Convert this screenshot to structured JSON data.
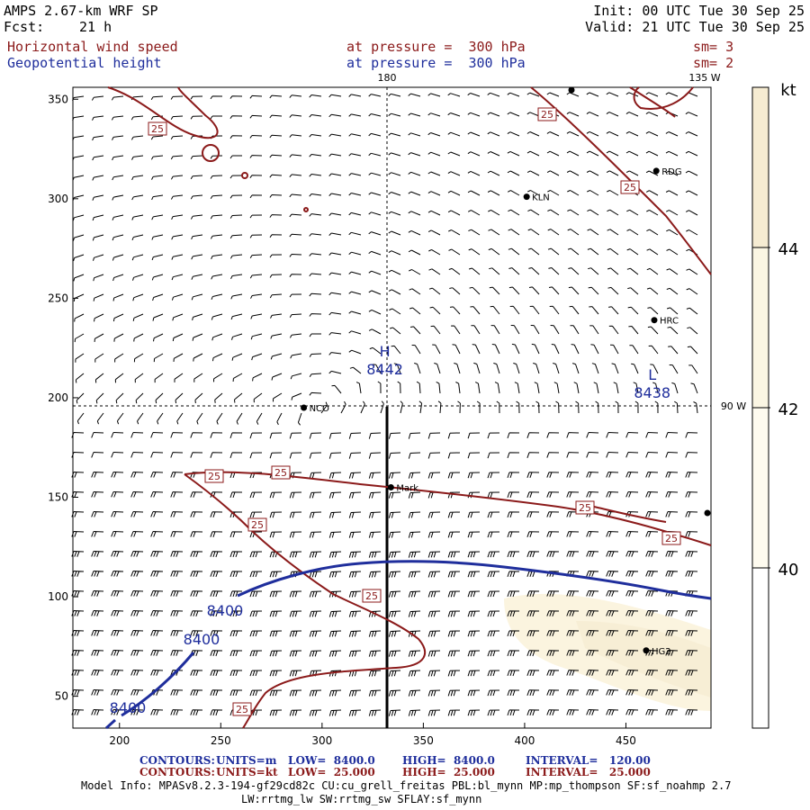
{
  "header": {
    "model": "AMPS 2.67-km WRF SP",
    "fcst_label": "Fcst:",
    "fcst_value": "21 h",
    "init": "Init: 00 UTC Tue 30 Sep 25",
    "valid": "Valid: 21 UTC Tue 30 Sep 25",
    "field1": "Horizontal wind speed",
    "field1_level": "at pressure =  300 hPa",
    "field1_sm": "sm= 3",
    "field2": "Geopotential height",
    "field2_level": "at pressure =  300 hPa",
    "field2_sm": "sm= 2"
  },
  "map": {
    "lon_labels": [
      "180",
      "135 W",
      "90 W"
    ],
    "x_ticks": [
      "200",
      "250",
      "300",
      "350",
      "400",
      "450"
    ],
    "y_ticks": [
      "350",
      "300",
      "250",
      "200",
      "150",
      "100",
      "50"
    ],
    "x_range": [
      177,
      492
    ],
    "y_range": [
      34,
      356
    ],
    "stations": [
      {
        "name": "RDG",
        "x": 465,
        "y": 314
      },
      {
        "name": "KLN",
        "x": 401,
        "y": 301
      },
      {
        "name": "HRC",
        "x": 464,
        "y": 239
      },
      {
        "name": "NCO",
        "x": 291,
        "y": 195
      },
      {
        "name": "Mark",
        "x": 334,
        "y": 155
      },
      {
        "name": "HG2",
        "x": 460,
        "y": 73
      }
    ],
    "highs_lows": [
      {
        "symbol": "H",
        "value": "8442",
        "x": 331,
        "y": 218
      },
      {
        "symbol": "L",
        "value": "8438",
        "x": 463,
        "y": 210
      }
    ],
    "wind_contour_label": "25",
    "height_contour_label": "8400"
  },
  "colorbar": {
    "unit": "kt",
    "labels": [
      "44",
      "42",
      "40"
    ],
    "colors": [
      "#f6ecd2",
      "#fbf6e3",
      "#fefbef",
      "#ffffff"
    ]
  },
  "footer": {
    "line1_label": "CONTOURS:",
    "line1_units": "UNITS=m",
    "line1_low": "LOW=  8400.0",
    "line1_high": "HIGH=  8400.0",
    "line1_interval": "INTERVAL=   120.00",
    "line2_label": "CONTOURS:",
    "line2_units": "UNITS=kt",
    "line2_low": "LOW=  25.000",
    "line2_high": "HIGH=  25.000",
    "line2_interval": "INTERVAL=   25.000",
    "model_info": "Model Info: MPASv8.2.3-194-gf29cd82c CU:cu_grell_freitas PBL:bl_mynn MP:mp_thompson SF:sf_noahmp 2.7",
    "model_info2": "LW:rrtmg_lw SW:rrtmg_sw SFLAY:sf_mynn"
  },
  "colors": {
    "wind_contour": "#8b1a1a",
    "height_contour": "#1f2e9c",
    "text_red": "#8b1a1a",
    "text_blue": "#1f2e9c"
  }
}
